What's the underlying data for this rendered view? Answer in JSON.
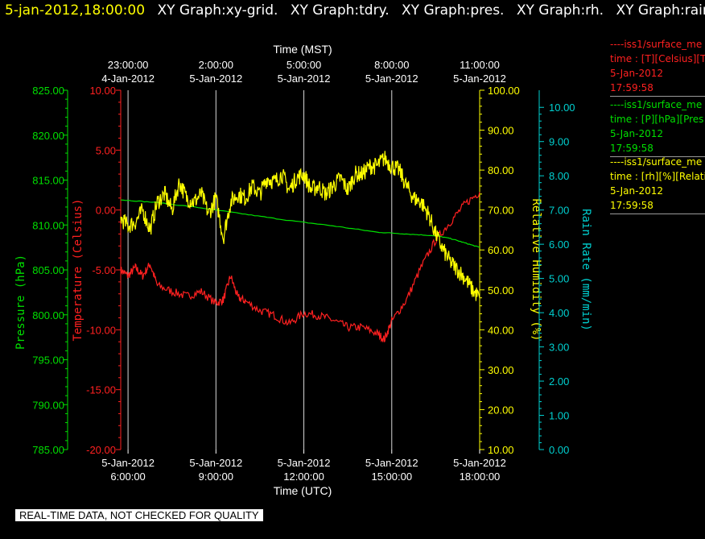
{
  "header": {
    "timestamp": "5-jan-2012,18:00:00",
    "graphs": [
      "XY Graph:xy-grid.",
      "XY Graph:tdry.",
      "XY Graph:pres.",
      "XY Graph:rh.",
      "XY Graph:rain."
    ]
  },
  "legend": [
    {
      "line": "----iss1/surface_me",
      "units": "time : [T][Celsius][T",
      "date": "5-Jan-2012",
      "time": "17:59:58",
      "color": "#ff2020"
    },
    {
      "line": "----iss1/surface_me",
      "units": "time : [P][hPa][Pres",
      "date": "5-Jan-2012",
      "time": "17:59:58",
      "color": "#00e000"
    },
    {
      "line": "----iss1/surface_me",
      "units": "time : [rh][%][Relati",
      "date": "5-Jan-2012",
      "time": "17:59:58",
      "color": "#ffff00"
    }
  ],
  "notice": "REAL-TIME DATA, NOT CHECKED FOR QUALITY",
  "chart_data": {
    "type": "line",
    "grid": "vertical lines at each bottom tick",
    "x_bottom": {
      "label": "Time (UTC)",
      "range_hours": [
        5.75,
        18.0
      ],
      "ticks": [
        {
          "hour": 6,
          "line1": "5-Jan-2012",
          "line2": "6:00:00"
        },
        {
          "hour": 9,
          "line1": "5-Jan-2012",
          "line2": "9:00:00"
        },
        {
          "hour": 12,
          "line1": "5-Jan-2012",
          "line2": "12:00:00"
        },
        {
          "hour": 15,
          "line1": "5-Jan-2012",
          "line2": "15:00:00"
        },
        {
          "hour": 18,
          "line1": "5-Jan-2012",
          "line2": "18:00:00"
        }
      ]
    },
    "x_top": {
      "label": "Time (MST)",
      "ticks": [
        {
          "hour": 6,
          "line1": "23:00:00",
          "line2": "4-Jan-2012"
        },
        {
          "hour": 9,
          "line1": "2:00:00",
          "line2": "5-Jan-2012"
        },
        {
          "hour": 12,
          "line1": "5:00:00",
          "line2": "5-Jan-2012"
        },
        {
          "hour": 15,
          "line1": "8:00:00",
          "line2": "5-Jan-2012"
        },
        {
          "hour": 18,
          "line1": "11:00:00",
          "line2": "5-Jan-2012"
        }
      ]
    },
    "axes": [
      {
        "key": "pressure",
        "label": "Pressure (hPa)",
        "color": "#00e000",
        "range": [
          785,
          825
        ],
        "ticks": [
          "785.00",
          "790.00",
          "795.00",
          "800.00",
          "805.00",
          "810.00",
          "815.00",
          "820.00",
          "825.00"
        ]
      },
      {
        "key": "temperature",
        "label": "Temperature (Celsius)",
        "color": "#ff2020",
        "range": [
          -20,
          10
        ],
        "ticks": [
          "-20.00",
          "-15.00",
          "-10.00",
          "-5.00",
          "0.00",
          "5.00",
          "10.00"
        ]
      },
      {
        "key": "rh",
        "label": "Relative Humidity (%)",
        "color": "#ffff00",
        "range": [
          10,
          100
        ],
        "ticks": [
          "10.00",
          "20.00",
          "30.00",
          "40.00",
          "50.00",
          "60.00",
          "70.00",
          "80.00",
          "90.00",
          "100.00"
        ]
      },
      {
        "key": "rain",
        "label": "Rain Rate (mm/min)",
        "color": "#00d0d0",
        "range": [
          0,
          10.5
        ],
        "ticks": [
          "0.00",
          "1.00",
          "2.00",
          "3.00",
          "4.00",
          "5.00",
          "6.00",
          "7.00",
          "8.00",
          "9.00",
          "10.00"
        ]
      }
    ],
    "series": [
      {
        "axis": "temperature",
        "color": "#ff2020",
        "x": [
          5.75,
          6.0,
          6.25,
          6.5,
          6.75,
          7.0,
          7.5,
          8.0,
          8.5,
          9.0,
          9.25,
          9.5,
          9.75,
          10.0,
          10.5,
          11.0,
          11.5,
          12.0,
          12.5,
          13.0,
          13.5,
          14.0,
          14.5,
          14.75,
          15.0,
          15.5,
          16.0,
          16.5,
          17.0,
          17.5,
          18.0
        ],
        "y": [
          -5.0,
          -5.5,
          -4.8,
          -5.5,
          -4.5,
          -6.3,
          -6.8,
          -7.2,
          -6.8,
          -7.8,
          -7.5,
          -5.5,
          -7.3,
          -7.6,
          -8.4,
          -8.8,
          -9.5,
          -8.6,
          -8.8,
          -9.2,
          -9.8,
          -9.8,
          -10.3,
          -10.8,
          -9.3,
          -7.5,
          -4.8,
          -2.5,
          -1.0,
          0.5,
          1.5
        ]
      },
      {
        "axis": "pressure",
        "color": "#00e000",
        "x": [
          5.75,
          7.0,
          8.5,
          10.0,
          11.5,
          13.0,
          14.5,
          15.5,
          16.5,
          17.0,
          17.5,
          18.0
        ],
        "y": [
          812.8,
          812.5,
          811.9,
          811.2,
          810.5,
          809.9,
          809.2,
          809.0,
          808.8,
          808.5,
          808.0,
          807.5
        ]
      },
      {
        "axis": "rh",
        "color": "#ffff00",
        "x": [
          5.75,
          6.0,
          6.25,
          6.5,
          6.75,
          7.0,
          7.25,
          7.5,
          7.75,
          8.0,
          8.25,
          8.5,
          8.75,
          9.0,
          9.25,
          9.5,
          9.75,
          10.0,
          10.25,
          10.5,
          10.75,
          11.0,
          11.25,
          11.5,
          11.75,
          12.0,
          12.25,
          12.5,
          12.75,
          13.0,
          13.25,
          13.5,
          13.75,
          14.0,
          14.25,
          14.5,
          14.75,
          15.0,
          15.25,
          15.5,
          15.75,
          16.0,
          16.25,
          16.5,
          16.75,
          17.0,
          17.25,
          17.5,
          17.75,
          18.0
        ],
        "y": [
          68,
          66,
          67,
          70,
          65,
          72,
          74,
          70,
          77,
          73,
          72,
          74,
          69,
          73,
          63,
          72,
          74,
          73,
          76,
          74,
          78,
          77,
          79,
          75,
          78,
          79,
          75,
          76,
          74,
          76,
          78,
          75,
          79,
          79,
          81,
          81,
          83,
          81,
          80,
          76,
          73,
          72,
          69,
          64,
          60,
          57,
          55,
          53,
          50,
          48
        ]
      }
    ]
  }
}
